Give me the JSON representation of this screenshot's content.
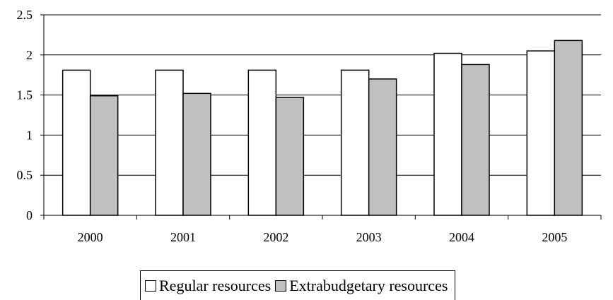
{
  "chart_data": {
    "type": "bar",
    "title": "",
    "xlabel": "",
    "ylabel": "",
    "categories": [
      "2000",
      "2001",
      "2002",
      "2003",
      "2004",
      "2005"
    ],
    "series": [
      {
        "name": "Regular resources",
        "values": [
          1.81,
          1.81,
          1.81,
          1.81,
          2.02,
          2.05
        ],
        "color": "#ffffff"
      },
      {
        "name": "Extrabudgetary resources",
        "values": [
          1.49,
          1.52,
          1.47,
          1.7,
          1.88,
          2.18
        ],
        "color": "#c0c0c0"
      }
    ],
    "ylim": [
      0,
      2.5
    ],
    "yticks": [
      "0",
      "0.5",
      "1",
      "1.5",
      "2",
      "2.5"
    ],
    "grid": true,
    "legend_position": "bottom"
  }
}
